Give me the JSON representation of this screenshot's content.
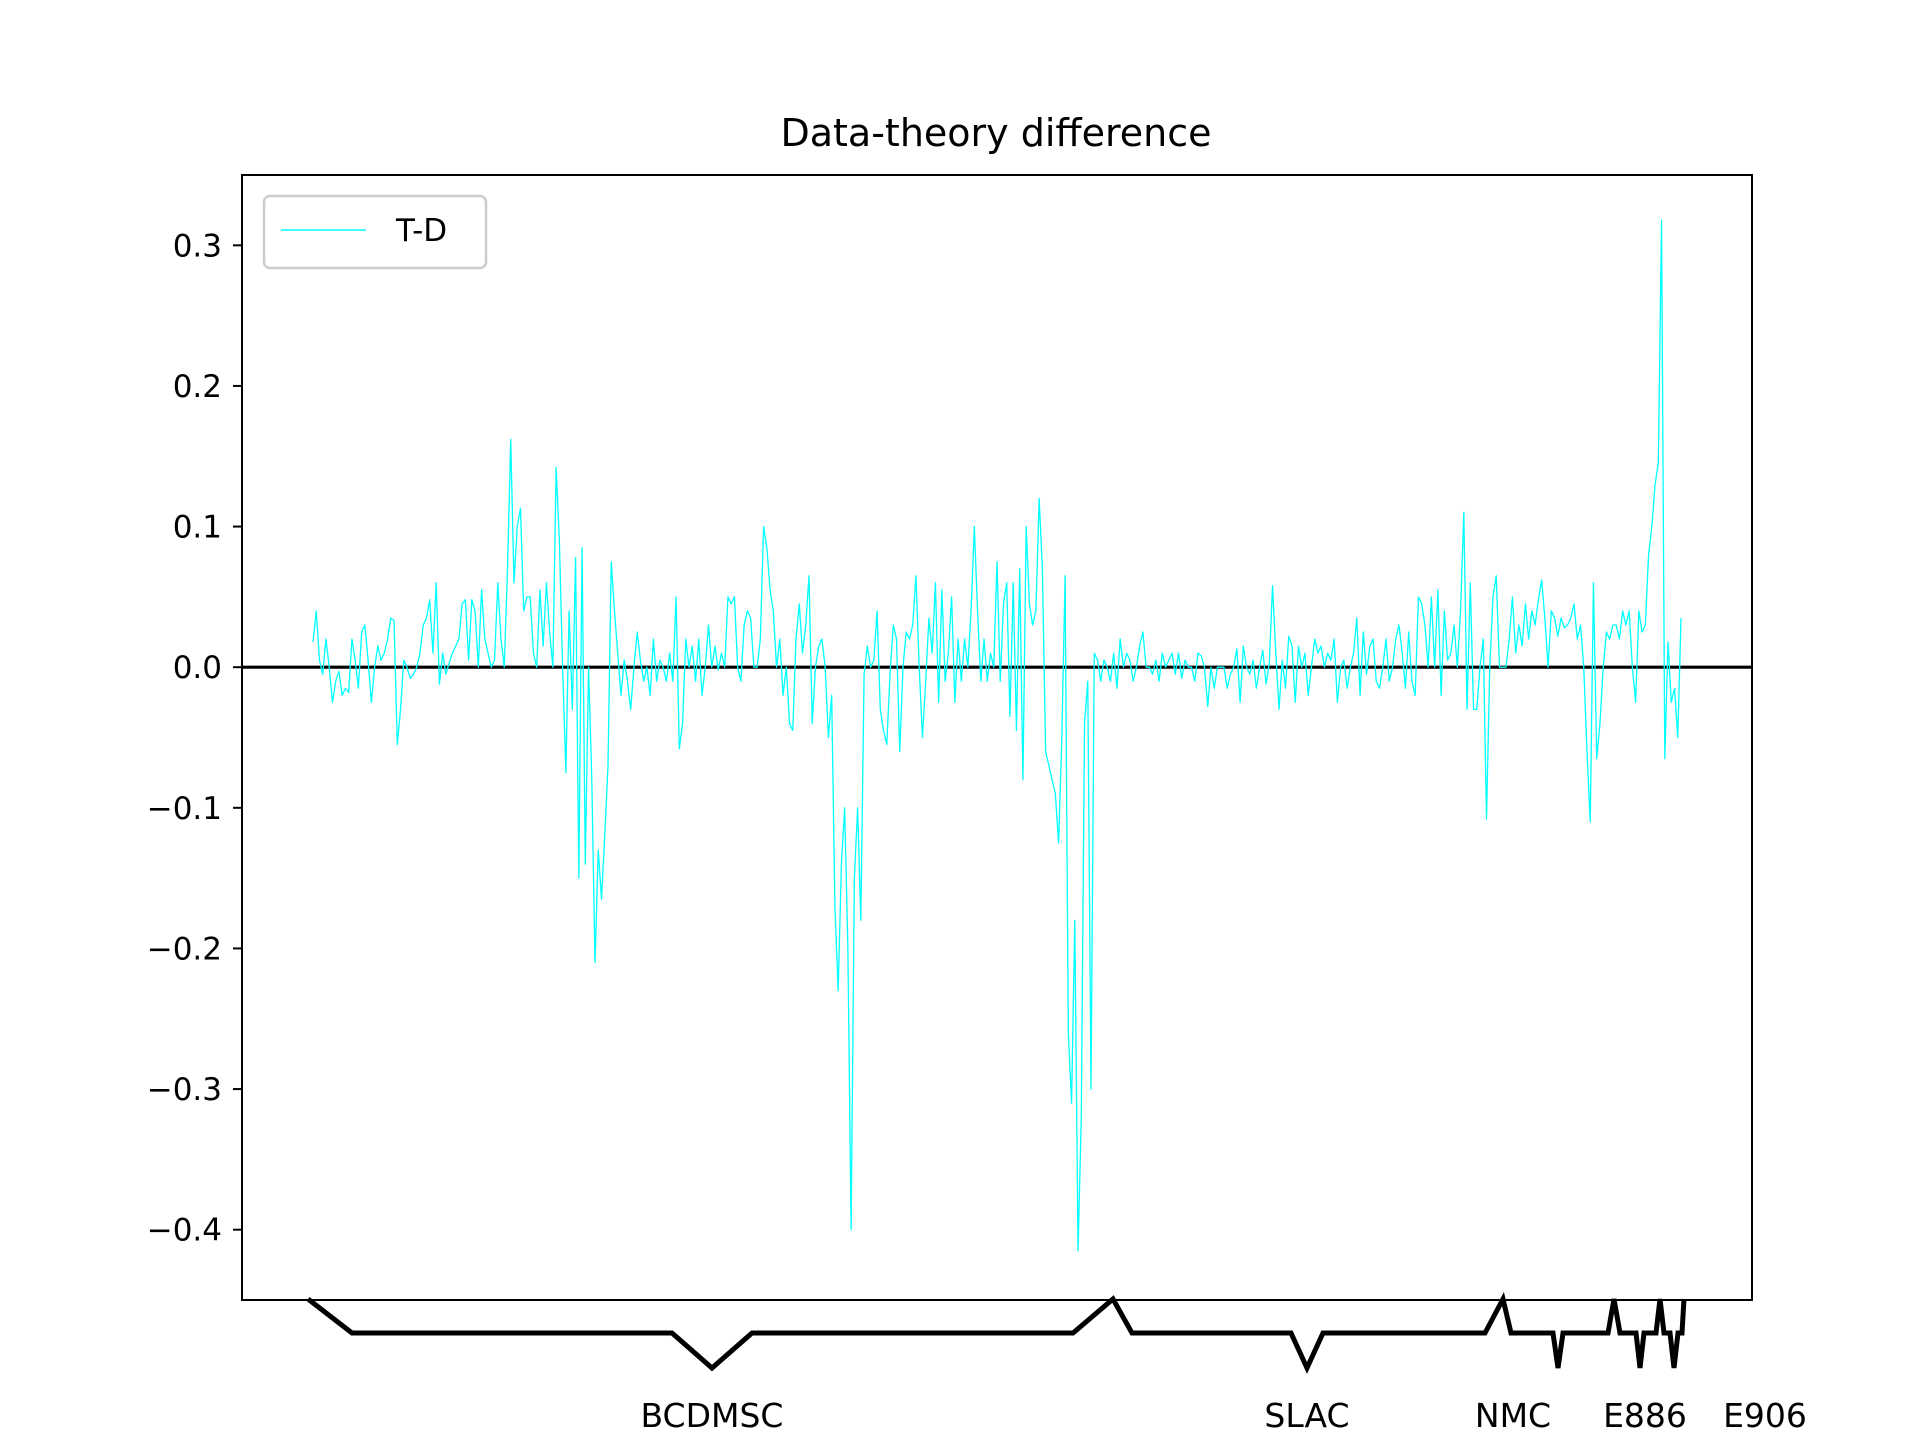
{
  "chart_data": {
    "type": "line",
    "title": "Data-theory difference",
    "xlabel": "",
    "ylabel": "",
    "ylim": [
      -0.45,
      0.35
    ],
    "y_ticks": [
      {
        "value": 0.3,
        "label": "0.3"
      },
      {
        "value": 0.2,
        "label": "0.2"
      },
      {
        "value": 0.1,
        "label": "0.1"
      },
      {
        "value": 0.0,
        "label": "0.0"
      },
      {
        "value": -0.1,
        "label": "−0.1"
      },
      {
        "value": -0.2,
        "label": "−0.2"
      },
      {
        "value": -0.3,
        "label": "−0.3"
      },
      {
        "value": -0.4,
        "label": "−0.4"
      }
    ],
    "grid": false,
    "legend_position": "upper-left",
    "zero_line": {
      "y": 0.0,
      "color": "#000000"
    },
    "series": [
      {
        "name": "T-D",
        "color": "#00ffff",
        "values": [
          0.018,
          0.04,
          0.005,
          -0.005,
          0.02,
          0.0,
          -0.025,
          -0.01,
          -0.003,
          -0.02,
          -0.015,
          -0.018,
          0.02,
          0.005,
          -0.015,
          0.025,
          0.03,
          0.005,
          -0.025,
          0.0,
          0.015,
          0.005,
          0.01,
          0.02,
          0.035,
          0.033,
          -0.055,
          -0.03,
          0.005,
          0.0,
          -0.008,
          -0.005,
          0.0,
          0.01,
          0.03,
          0.035,
          0.048,
          0.01,
          0.06,
          -0.012,
          0.01,
          -0.005,
          0.003,
          0.01,
          0.015,
          0.02,
          0.045,
          0.048,
          0.005,
          0.048,
          0.04,
          0.0,
          0.055,
          0.02,
          0.01,
          0.0,
          0.005,
          0.06,
          0.02,
          0.0,
          0.07,
          0.162,
          0.06,
          0.1,
          0.113,
          0.04,
          0.05,
          0.05,
          0.01,
          0.0,
          0.055,
          0.015,
          0.06,
          0.025,
          0.0,
          0.142,
          0.09,
          0.0,
          -0.075,
          0.04,
          -0.03,
          0.078,
          -0.15,
          0.085,
          -0.14,
          0.0,
          -0.08,
          -0.21,
          -0.13,
          -0.165,
          -0.12,
          -0.07,
          0.075,
          0.04,
          0.01,
          -0.02,
          0.005,
          -0.01,
          -0.03,
          0.0,
          0.025,
          0.005,
          -0.01,
          0.0,
          -0.02,
          0.02,
          -0.01,
          0.005,
          0.0,
          -0.01,
          0.01,
          -0.01,
          0.05,
          -0.058,
          -0.04,
          0.02,
          0.0,
          0.015,
          -0.01,
          0.02,
          -0.02,
          0.0,
          0.03,
          0.0,
          0.015,
          -0.002,
          0.01,
          0.0,
          0.05,
          0.045,
          0.05,
          0.0,
          -0.01,
          0.03,
          0.04,
          0.035,
          0.0,
          0.0,
          0.02,
          0.1,
          0.085,
          0.055,
          0.04,
          0.0,
          0.02,
          -0.02,
          0.0,
          -0.04,
          -0.045,
          0.02,
          0.045,
          0.01,
          0.03,
          0.065,
          -0.04,
          0.0,
          0.015,
          0.02,
          0.0,
          -0.05,
          -0.02,
          -0.17,
          -0.23,
          -0.14,
          -0.1,
          -0.2,
          -0.4,
          -0.15,
          -0.1,
          -0.18,
          -0.005,
          0.015,
          0.0,
          0.005,
          0.04,
          -0.03,
          -0.045,
          -0.055,
          -0.005,
          0.03,
          0.02,
          -0.06,
          0.0,
          0.025,
          0.02,
          0.03,
          0.065,
          0.0,
          -0.05,
          -0.01,
          0.035,
          0.01,
          0.06,
          -0.025,
          0.055,
          -0.01,
          0.01,
          0.05,
          -0.025,
          0.02,
          -0.01,
          0.02,
          0.0,
          0.04,
          0.1,
          0.04,
          -0.01,
          0.02,
          -0.01,
          0.01,
          0.0,
          0.075,
          -0.01,
          0.045,
          0.06,
          -0.035,
          0.06,
          -0.045,
          0.07,
          -0.08,
          0.1,
          0.045,
          0.03,
          0.04,
          0.12,
          0.07,
          -0.06,
          -0.07,
          -0.08,
          -0.09,
          -0.125,
          -0.05,
          0.065,
          -0.26,
          -0.31,
          -0.18,
          -0.415,
          -0.32,
          -0.04,
          -0.01,
          -0.3,
          0.01,
          0.005,
          -0.01,
          0.005,
          0.0,
          -0.01,
          0.01,
          -0.015,
          0.02,
          0.0,
          0.01,
          0.005,
          -0.01,
          0.0,
          0.015,
          0.025,
          0.0,
          0.0,
          -0.005,
          0.005,
          -0.01,
          0.01,
          0.0,
          0.005,
          0.01,
          -0.005,
          0.01,
          -0.008,
          0.005,
          0.0,
          0.0,
          -0.01,
          0.01,
          0.008,
          0.0,
          -0.028,
          0.0,
          -0.015,
          0.0,
          0.0,
          0.0,
          -0.015,
          -0.005,
          0.0,
          0.013,
          -0.025,
          0.015,
          0.0,
          -0.005,
          0.005,
          -0.015,
          0.0,
          0.012,
          -0.012,
          0.003,
          0.058,
          0.01,
          -0.03,
          0.005,
          -0.015,
          0.022,
          0.015,
          -0.025,
          0.015,
          0.0,
          0.01,
          -0.02,
          0.0,
          0.02,
          0.01,
          0.015,
          0.0,
          0.01,
          0.005,
          0.02,
          -0.025,
          0.0,
          0.005,
          -0.015,
          0.0,
          0.01,
          0.035,
          -0.02,
          0.025,
          -0.005,
          0.015,
          0.02,
          -0.01,
          -0.015,
          0.0,
          0.02,
          -0.01,
          0.0,
          0.02,
          0.03,
          0.01,
          -0.015,
          0.025,
          -0.01,
          -0.02,
          0.05,
          0.045,
          0.03,
          0.0,
          0.05,
          0.0,
          0.055,
          -0.02,
          0.04,
          0.005,
          0.01,
          0.03,
          0.0,
          0.04,
          0.11,
          -0.03,
          0.06,
          -0.03,
          -0.03,
          0.0,
          0.02,
          -0.108,
          0.0,
          0.05,
          0.065,
          0.0,
          0.0,
          0.0,
          0.02,
          0.05,
          0.01,
          0.03,
          0.015,
          0.045,
          0.02,
          0.04,
          0.03,
          0.048,
          0.062,
          0.035,
          0.0,
          0.04,
          0.035,
          0.022,
          0.035,
          0.028,
          0.03,
          0.035,
          0.045,
          0.02,
          0.03,
          0.0,
          -0.06,
          -0.11,
          0.06,
          -0.065,
          -0.04,
          0.0,
          0.025,
          0.02,
          0.03,
          0.03,
          0.02,
          0.04,
          0.03,
          0.04,
          0.0,
          -0.025,
          0.04,
          0.025,
          0.03,
          0.08,
          0.1,
          0.13,
          0.145,
          0.318,
          -0.065,
          0.018,
          -0.025,
          -0.015,
          -0.05,
          0.035
        ]
      }
    ],
    "datasets": [
      {
        "label": "BCDMSC"
      },
      {
        "label": "SLAC"
      },
      {
        "label": "NMC"
      },
      {
        "label": "E886"
      },
      {
        "label": "E906"
      }
    ]
  }
}
